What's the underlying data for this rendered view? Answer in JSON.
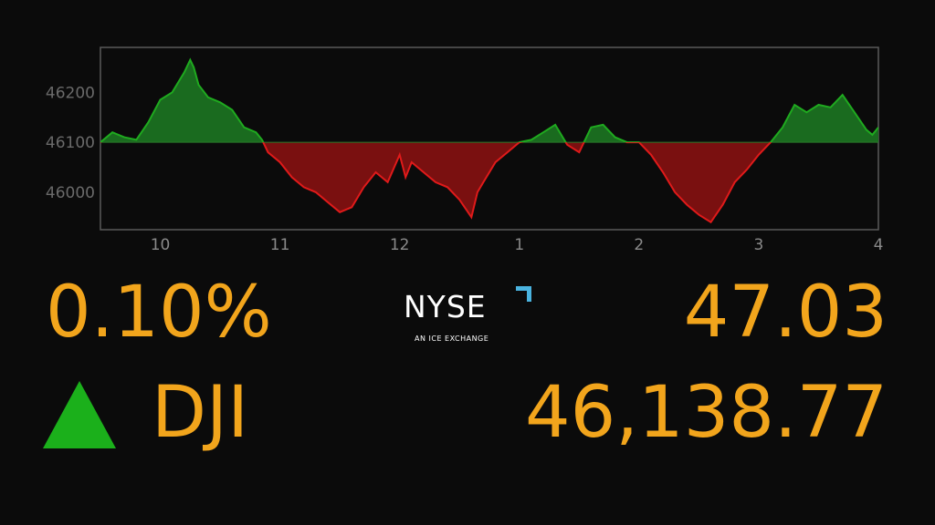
{
  "chart_data": {
    "type": "area",
    "baseline": 46100,
    "ylim": [
      45925,
      46290
    ],
    "yticks": [
      46000,
      46100,
      46200
    ],
    "xlim": [
      9.5,
      16.0
    ],
    "xticks": [
      {
        "value": 10,
        "label": "10"
      },
      {
        "value": 11,
        "label": "11"
      },
      {
        "value": 12,
        "label": "12"
      },
      {
        "value": 13,
        "label": "1"
      },
      {
        "value": 14,
        "label": "2"
      },
      {
        "value": 15,
        "label": "3"
      },
      {
        "value": 16,
        "label": "4"
      }
    ],
    "colors": {
      "up": "#1faa1f",
      "up_fill": "#1a6b1f",
      "down": "#e01a1a",
      "down_fill": "#7a1010",
      "axis": "#5a5a5a",
      "baseline": "#2a7a2a"
    },
    "x": [
      9.5,
      9.6,
      9.7,
      9.8,
      9.9,
      10.0,
      10.1,
      10.2,
      10.25,
      10.28,
      10.32,
      10.4,
      10.5,
      10.6,
      10.7,
      10.8,
      10.85,
      10.9,
      11.0,
      11.1,
      11.2,
      11.3,
      11.4,
      11.5,
      11.6,
      11.7,
      11.8,
      11.9,
      12.0,
      12.05,
      12.1,
      12.2,
      12.3,
      12.4,
      12.5,
      12.6,
      12.65,
      12.7,
      12.8,
      12.9,
      13.0,
      13.1,
      13.2,
      13.3,
      13.4,
      13.5,
      13.6,
      13.7,
      13.8,
      13.9,
      14.0,
      14.1,
      14.2,
      14.3,
      14.4,
      14.5,
      14.6,
      14.7,
      14.8,
      14.9,
      15.0,
      15.1,
      15.2,
      15.3,
      15.4,
      15.5,
      15.6,
      15.7,
      15.8,
      15.9,
      15.95,
      16.0
    ],
    "y": [
      46100,
      46120,
      46110,
      46105,
      46140,
      46185,
      46200,
      46240,
      46265,
      46250,
      46215,
      46190,
      46180,
      46165,
      46130,
      46120,
      46105,
      46080,
      46060,
      46030,
      46010,
      46000,
      45980,
      45960,
      45970,
      46010,
      46040,
      46020,
      46075,
      46030,
      46060,
      46040,
      46020,
      46010,
      45985,
      45950,
      46000,
      46020,
      46060,
      46080,
      46100,
      46105,
      46120,
      46135,
      46095,
      46080,
      46130,
      46135,
      46110,
      46100,
      46100,
      46075,
      46040,
      46000,
      45975,
      45955,
      45940,
      45975,
      46020,
      46045,
      46075,
      46100,
      46130,
      46175,
      46160,
      46175,
      46170,
      46195,
      46160,
      46125,
      46115,
      46130
    ]
  },
  "ticker": {
    "percent_change": "0.10%",
    "points_change": "47.03",
    "symbol": "DJI",
    "level": "46,138.77",
    "direction": "up",
    "direction_icon": "triangle-up-icon"
  },
  "logo": {
    "word": "NYSE",
    "tagline": "AN ICE EXCHANGE",
    "accent_color": "#4ab3df"
  },
  "theme": {
    "value_color": "#f2a51c",
    "background": "#0b0b0b"
  }
}
